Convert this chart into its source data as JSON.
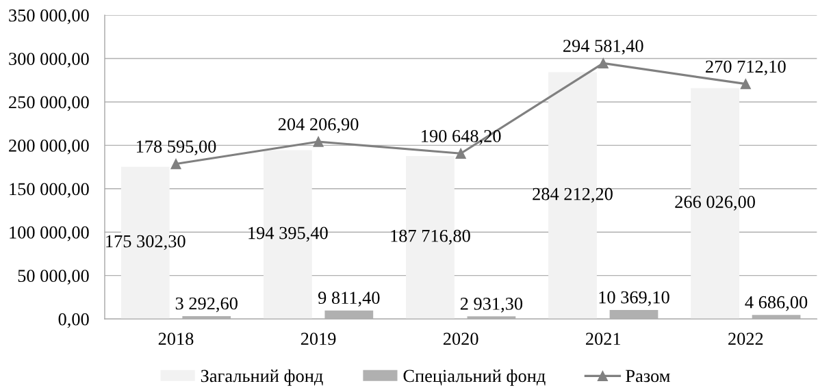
{
  "chart_data": {
    "type": "bar",
    "categories": [
      "2018",
      "2019",
      "2020",
      "2021",
      "2022"
    ],
    "series": [
      {
        "name": "Загальний фонд",
        "color": "#f2f2f2",
        "values": [
          175302.3,
          194395.4,
          187716.8,
          284212.2,
          266026.0
        ],
        "value_labels": [
          "175 302,30",
          "194 395,40",
          "187 716,80",
          "284 212,20",
          "266 026,00"
        ]
      },
      {
        "name": "Спеціальний фонд",
        "color": "#b0b0b0",
        "values": [
          3292.6,
          9811.4,
          2931.3,
          10369.1,
          4686.0
        ],
        "value_labels": [
          "3 292,60",
          "9 811,40",
          "2 931,30",
          "10 369,10",
          "4 686,00"
        ]
      },
      {
        "name": "Разом",
        "type": "line",
        "color": "#808080",
        "values": [
          178595.0,
          204206.9,
          190648.2,
          294581.4,
          270712.1
        ],
        "value_labels": [
          "178 595,00",
          "204 206,90",
          "190 648,20",
          "294 581,40",
          "270 712,10"
        ]
      }
    ],
    "ylim": [
      0,
      350000
    ],
    "yticks": [
      {
        "value": 0,
        "label": "0,00"
      },
      {
        "value": 50000,
        "label": "50 000,00"
      },
      {
        "value": 100000,
        "label": "100 000,00"
      },
      {
        "value": 150000,
        "label": "150 000,00"
      },
      {
        "value": 200000,
        "label": "200 000,00"
      },
      {
        "value": 250000,
        "label": "250 000,00"
      },
      {
        "value": 300000,
        "label": "300 000,00"
      },
      {
        "value": 350000,
        "label": "350 000,00"
      }
    ],
    "grid": "y",
    "legend": "bottom",
    "marker": "triangle",
    "line_style": "solid"
  }
}
